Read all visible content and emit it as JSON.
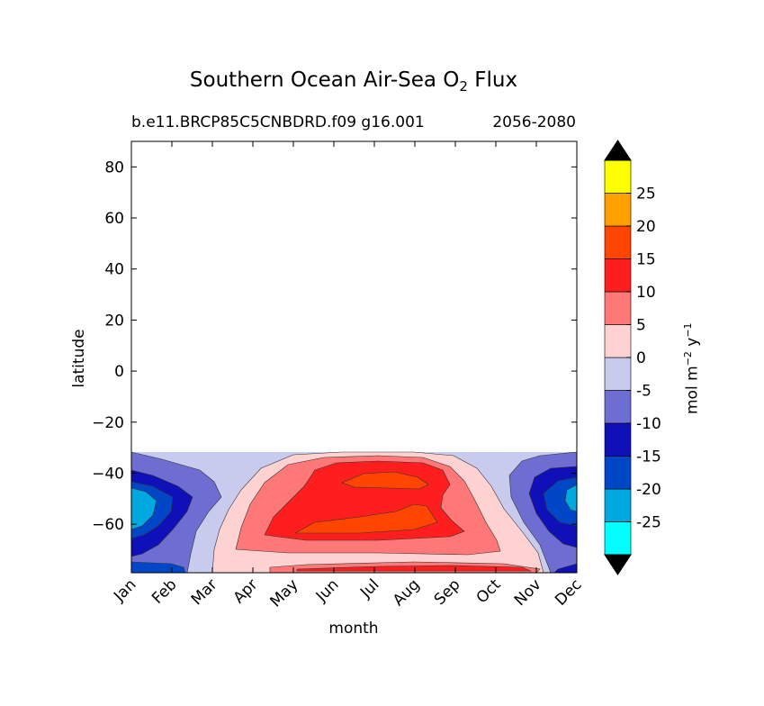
{
  "header": {
    "title_prefix": "Southern Ocean Air-Sea O",
    "title_sub": "2",
    "title_suffix": " Flux",
    "case_name": "b.e11.BRCP85C5CNBDRD.f09 g16.001",
    "period": "2056-2080"
  },
  "colorbar": {
    "label_prefix": "mol m",
    "label_exp1": "−2",
    "label_mid": " y",
    "label_exp2": "−1",
    "extend": "both"
  },
  "chart_data": {
    "type": "heatmap",
    "plot_style": "filled contour (month × latitude)",
    "xlabel": "month",
    "ylabel": "latitude",
    "x_categories": [
      "Jan",
      "Feb",
      "Mar",
      "Apr",
      "May",
      "Jun",
      "Jul",
      "Aug",
      "Sep",
      "Oct",
      "Nov",
      "Dec"
    ],
    "xlim": [
      0,
      11
    ],
    "ylim": [
      -79,
      90
    ],
    "y_ticks": [
      80,
      60,
      40,
      20,
      0,
      -20,
      -40,
      -60
    ],
    "y_tick_labels": [
      "80",
      "60",
      "40",
      "20",
      "0",
      "−20",
      "−40",
      "−60"
    ],
    "data_lat_range": [
      -78,
      -31
    ],
    "levels": [
      -30,
      -25,
      -20,
      -15,
      -10,
      -5,
      0,
      5,
      10,
      15,
      20,
      25,
      30
    ],
    "colorbar_tick_values": [
      25,
      20,
      15,
      10,
      5,
      0,
      -5,
      -10,
      -15,
      -20,
      -25
    ],
    "colorbar_tick_labels": [
      "25",
      "20",
      "15",
      "10",
      "5",
      "0",
      "-5",
      "-10",
      "-15",
      "-20",
      "-25"
    ],
    "level_colors": [
      "#00ffff",
      "#00a8e0",
      "#0047c8",
      "#1010b8",
      "#6e6ed2",
      "#c8caee",
      "#ffd2d2",
      "#ff7878",
      "#ff1e1e",
      "#ff4500",
      "#ffa000",
      "#ffff00"
    ],
    "under_color": "#000000",
    "over_color": "#000000",
    "field_summary": [
      {
        "region": "Jan–Feb and Nov–Dec, 45–60S",
        "approx_flux": -22
      },
      {
        "region": "Jun–Aug, 55–65S",
        "approx_flux": 17
      },
      {
        "region": "Jul–Aug, 38–45S",
        "approx_flux": 17
      },
      {
        "region": "Mar and Oct, 35–70S",
        "approx_flux": -3
      }
    ]
  }
}
